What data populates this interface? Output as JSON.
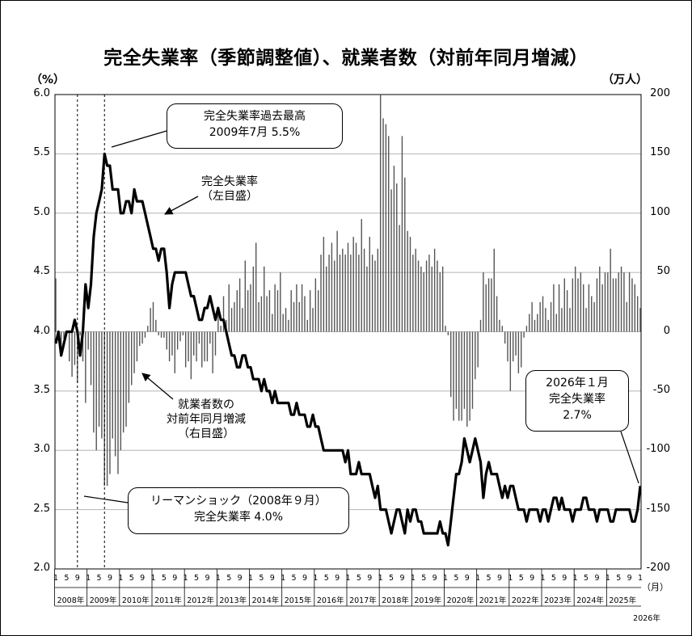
{
  "title": "完全失業率（季節調整値）、就業者数（対前年同月増減）",
  "left_unit": "（%）",
  "right_unit": "（万人）",
  "month_unit": "（月）",
  "callouts": {
    "peak_l1": "完全失業率過去最高",
    "peak_l2": "2009年7月  5.5%",
    "lehman_l1": "リーマンショック（2008年９月）",
    "lehman_l2": "完全失業率  4.0%",
    "latest_l1": "2026年１月",
    "latest_l2": "完全失業率",
    "latest_l3": "2.7%"
  },
  "labels": {
    "rate_l1": "完全失業率",
    "rate_l2": "（左目盛）",
    "emp_l1": "就業者数の",
    "emp_l2": "対前年同月増減",
    "emp_l3": "（右目盛）"
  },
  "month_labels": [
    "1",
    "5",
    "9"
  ],
  "last_month_label": "1",
  "chart_data": {
    "type": "line+bar",
    "x_start": "2008-01",
    "x_end": "2026-01",
    "years": [
      "2008年",
      "2009年",
      "2010年",
      "2011年",
      "2012年",
      "2013年",
      "2014年",
      "2015年",
      "2016年",
      "2017年",
      "2018年",
      "2019年",
      "2020年",
      "2021年",
      "2022年",
      "2023年",
      "2024年",
      "2025年",
      "2026年"
    ],
    "left_axis": {
      "min": 2.0,
      "max": 6.0,
      "step": 0.5,
      "ticks": [
        "2.0",
        "2.5",
        "3.0",
        "3.5",
        "4.0",
        "4.5",
        "5.0",
        "5.5",
        "6.0"
      ]
    },
    "right_axis": {
      "min": -200,
      "max": 200,
      "step": 50,
      "ticks": [
        "-200",
        "-150",
        "-100",
        "-50",
        "0",
        "50",
        "100",
        "150",
        "200"
      ]
    },
    "series": [
      {
        "name": "完全失業率",
        "type": "line",
        "axis": "left",
        "values": [
          3.9,
          4.0,
          3.8,
          3.9,
          4.0,
          4.0,
          4.0,
          4.1,
          4.0,
          3.8,
          4.0,
          4.4,
          4.2,
          4.4,
          4.8,
          5.0,
          5.1,
          5.2,
          5.5,
          5.4,
          5.4,
          5.2,
          5.2,
          5.2,
          5.0,
          5.0,
          5.1,
          5.1,
          5.0,
          5.2,
          5.1,
          5.1,
          5.1,
          5.0,
          4.9,
          4.8,
          4.7,
          4.7,
          4.6,
          4.7,
          4.7,
          4.5,
          4.2,
          4.4,
          4.5,
          4.5,
          4.5,
          4.5,
          4.5,
          4.4,
          4.3,
          4.3,
          4.2,
          4.1,
          4.1,
          4.2,
          4.2,
          4.3,
          4.2,
          4.1,
          4.2,
          4.1,
          4.1,
          4.0,
          3.9,
          3.8,
          3.8,
          3.7,
          3.7,
          3.8,
          3.8,
          3.7,
          3.7,
          3.6,
          3.6,
          3.6,
          3.5,
          3.6,
          3.5,
          3.5,
          3.4,
          3.5,
          3.4,
          3.4,
          3.4,
          3.4,
          3.4,
          3.3,
          3.3,
          3.4,
          3.3,
          3.3,
          3.3,
          3.2,
          3.2,
          3.3,
          3.2,
          3.2,
          3.1,
          3.0,
          3.0,
          3.0,
          3.0,
          3.0,
          3.0,
          3.0,
          3.0,
          2.9,
          3.0,
          2.8,
          2.8,
          2.8,
          2.9,
          2.8,
          2.8,
          2.8,
          2.8,
          2.7,
          2.6,
          2.7,
          2.5,
          2.5,
          2.5,
          2.4,
          2.3,
          2.4,
          2.5,
          2.5,
          2.4,
          2.3,
          2.5,
          2.4,
          2.5,
          2.5,
          2.4,
          2.4,
          2.3,
          2.3,
          2.3,
          2.3,
          2.3,
          2.3,
          2.4,
          2.3,
          2.3,
          2.2,
          2.4,
          2.6,
          2.8,
          2.8,
          2.9,
          3.1,
          3.0,
          2.9,
          3.0,
          3.1,
          3.0,
          2.9,
          2.6,
          2.8,
          2.9,
          2.8,
          2.8,
          2.8,
          2.7,
          2.6,
          2.7,
          2.6,
          2.7,
          2.7,
          2.6,
          2.5,
          2.5,
          2.5,
          2.4,
          2.5,
          2.5,
          2.5,
          2.5,
          2.4,
          2.5,
          2.5,
          2.4,
          2.5,
          2.6,
          2.6,
          2.5,
          2.6,
          2.5,
          2.5,
          2.5,
          2.4,
          2.5,
          2.5,
          2.5,
          2.6,
          2.6,
          2.5,
          2.5,
          2.5,
          2.4,
          2.5,
          2.5,
          2.5,
          2.5,
          2.4,
          2.4,
          2.5,
          2.5,
          2.5,
          2.5,
          2.5,
          2.5,
          2.4,
          2.4,
          2.5,
          2.7
        ]
      },
      {
        "name": "就業者数の対前年同月増減",
        "type": "bar",
        "axis": "right",
        "values": [
          45,
          -3,
          -18,
          -6,
          -3,
          -25,
          -38,
          -28,
          -43,
          -3,
          -25,
          -60,
          -15,
          -45,
          -85,
          -100,
          -80,
          -90,
          -130,
          -130,
          -120,
          -90,
          -105,
          -120,
          -100,
          -85,
          -80,
          -60,
          -45,
          -35,
          -25,
          -12,
          -10,
          -5,
          5,
          20,
          25,
          10,
          -3,
          -5,
          -5,
          -15,
          -25,
          -20,
          -35,
          -15,
          -8,
          -3,
          -30,
          -25,
          -40,
          -20,
          -25,
          -10,
          -30,
          -25,
          -25,
          -10,
          -35,
          -20,
          15,
          5,
          30,
          10,
          40,
          20,
          25,
          35,
          45,
          20,
          60,
          35,
          40,
          55,
          75,
          25,
          30,
          55,
          30,
          35,
          15,
          40,
          35,
          50,
          15,
          20,
          10,
          35,
          25,
          40,
          25,
          40,
          30,
          10,
          35,
          20,
          45,
          35,
          65,
          80,
          55,
          65,
          75,
          60,
          85,
          65,
          70,
          65,
          75,
          65,
          80,
          75,
          65,
          95,
          70,
          55,
          80,
          65,
          60,
          70,
          200,
          180,
          175,
          165,
          120,
          140,
          125,
          90,
          165,
          130,
          85,
          80,
          65,
          70,
          60,
          55,
          50,
          60,
          65,
          55,
          70,
          60,
          50,
          55,
          5,
          -3,
          -55,
          -75,
          -65,
          -75,
          -75,
          -65,
          -80,
          -75,
          -65,
          -40,
          -30,
          10,
          50,
          40,
          45,
          45,
          70,
          30,
          10,
          5,
          -10,
          -25,
          -50,
          -25,
          -20,
          -35,
          -30,
          -5,
          5,
          15,
          25,
          10,
          15,
          25,
          30,
          20,
          10,
          25,
          40,
          15,
          40,
          20,
          45,
          35,
          20,
          45,
          55,
          45,
          50,
          40,
          20,
          40,
          30,
          25,
          45,
          55,
          40,
          50,
          50,
          70,
          45,
          45,
          50,
          55,
          50,
          25,
          50,
          45,
          40,
          30,
          20
        ]
      }
    ],
    "annotations": [
      {
        "text": "2009年7月 5.5%",
        "date": "2009-07",
        "value": 5.5
      },
      {
        "text": "リーマンショック（2008年９月）",
        "date": "2008-09",
        "value": 4.0
      },
      {
        "text": "2026年１月 2.7%",
        "date": "2026-01",
        "value": 2.7
      }
    ],
    "grid": "horizontal"
  }
}
